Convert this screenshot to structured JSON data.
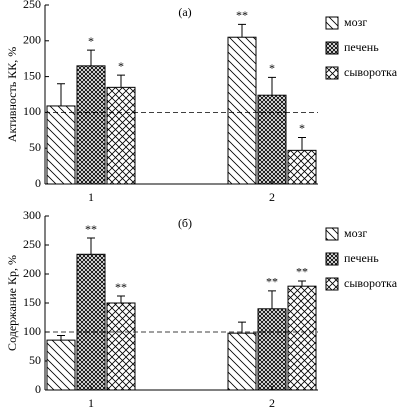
{
  "chart_data": [
    {
      "type": "bar",
      "panel_label": "(а)",
      "y_label": "Активность КК, %",
      "categories": [
        "1",
        "2"
      ],
      "ylim": [
        0,
        250
      ],
      "yticks": [
        0,
        50,
        100,
        150,
        200,
        250
      ],
      "reference_line": 100,
      "series": [
        {
          "name": "мозг",
          "color": "#000000",
          "hatch": "back-diagonal",
          "values": [
            109,
            205
          ],
          "errors": [
            31,
            18
          ],
          "annotations": [
            null,
            "**"
          ]
        },
        {
          "name": "печень",
          "color": "#000000",
          "hatch": "dense-cross",
          "values": [
            165,
            124
          ],
          "errors": [
            22,
            25
          ],
          "annotations": [
            "*",
            "*"
          ]
        },
        {
          "name": "сыворотка",
          "color": "#000000",
          "hatch": "cross",
          "values": [
            135,
            47
          ],
          "errors": [
            17,
            18
          ],
          "annotations": [
            "*",
            "*"
          ]
        }
      ]
    },
    {
      "type": "bar",
      "panel_label": "(б)",
      "y_label": "Содержание Кр, %",
      "categories": [
        "1",
        "2"
      ],
      "ylim": [
        0,
        300
      ],
      "yticks": [
        0,
        50,
        100,
        150,
        200,
        250,
        300
      ],
      "reference_line": 100,
      "series": [
        {
          "name": "мозг",
          "color": "#000000",
          "hatch": "back-diagonal",
          "values": [
            86,
            98
          ],
          "errors": [
            8,
            19
          ],
          "annotations": [
            null,
            null
          ]
        },
        {
          "name": "печень",
          "color": "#000000",
          "hatch": "dense-cross",
          "values": [
            234,
            140
          ],
          "errors": [
            28,
            31
          ],
          "annotations": [
            "**",
            "**"
          ]
        },
        {
          "name": "сыворотка",
          "color": "#000000",
          "hatch": "cross",
          "values": [
            150,
            179
          ],
          "errors": [
            12,
            9
          ],
          "annotations": [
            "**",
            "**"
          ]
        }
      ]
    }
  ]
}
